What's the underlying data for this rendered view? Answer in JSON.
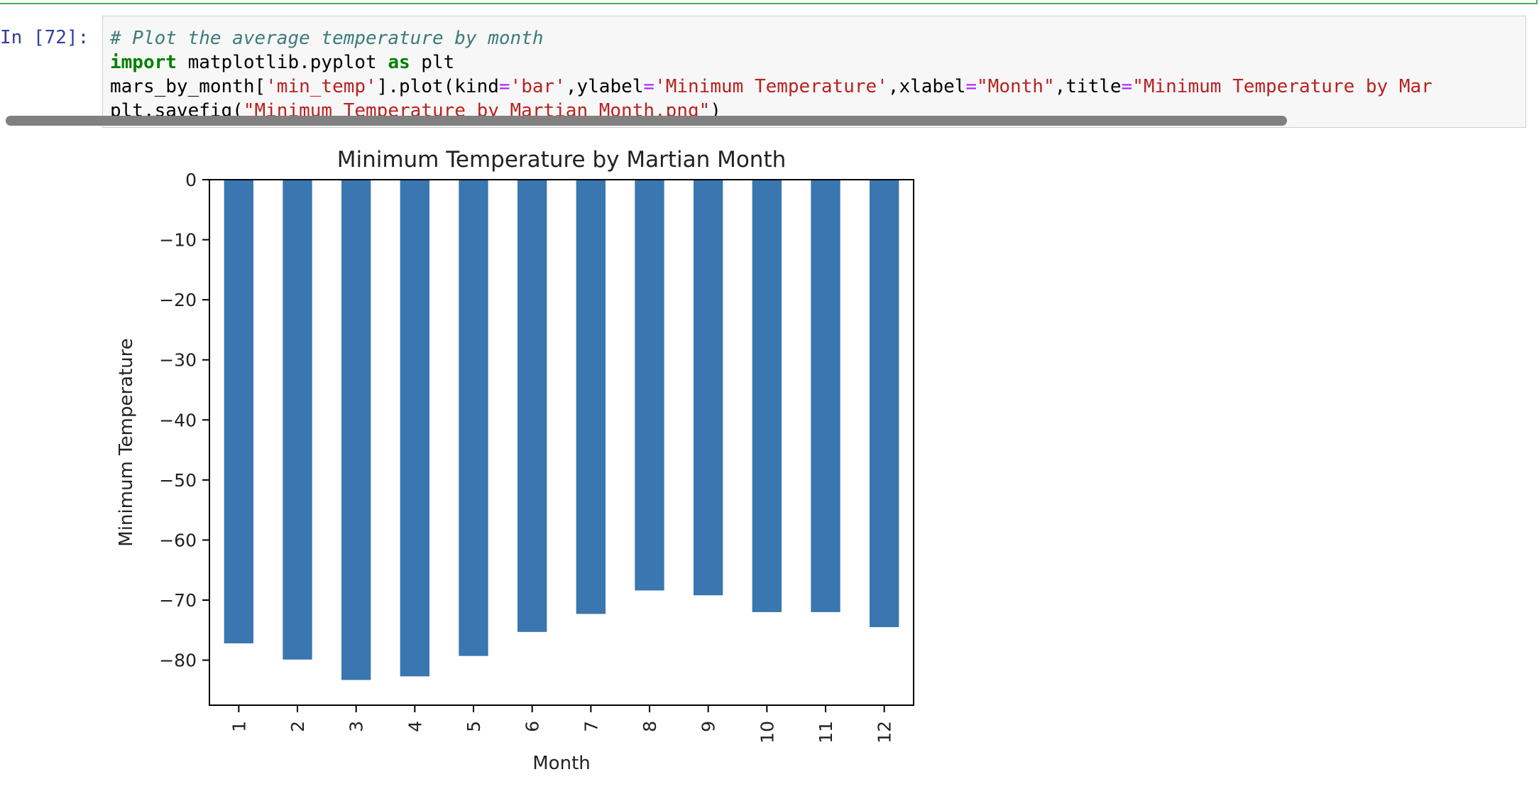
{
  "cell": {
    "prompt": "In [72]:",
    "code_lines": [
      [
        {
          "t": "# Plot the average temperature by month",
          "c": "c-comment"
        }
      ],
      [
        {
          "t": "import",
          "c": "c-kw"
        },
        {
          "t": " matplotlib.pyplot ",
          "c": ""
        },
        {
          "t": "as",
          "c": "c-kw"
        },
        {
          "t": " plt",
          "c": ""
        }
      ],
      [
        {
          "t": "mars_by_month[",
          "c": ""
        },
        {
          "t": "'min_temp'",
          "c": "c-str"
        },
        {
          "t": "].plot(kind",
          "c": ""
        },
        {
          "t": "=",
          "c": "c-op"
        },
        {
          "t": "'bar'",
          "c": "c-str"
        },
        {
          "t": ",ylabel",
          "c": ""
        },
        {
          "t": "=",
          "c": "c-op"
        },
        {
          "t": "'Minimum Temperature'",
          "c": "c-str"
        },
        {
          "t": ",xlabel",
          "c": ""
        },
        {
          "t": "=",
          "c": "c-op"
        },
        {
          "t": "\"Month\"",
          "c": "c-str"
        },
        {
          "t": ",title",
          "c": ""
        },
        {
          "t": "=",
          "c": "c-op"
        },
        {
          "t": "\"Minimum Temperature by Mar",
          "c": "c-str"
        }
      ],
      [
        {
          "t": "plt.savefig(",
          "c": ""
        },
        {
          "t": "\"Minimum_Temperature_by_Martian_Month.png\"",
          "c": "c-str"
        },
        {
          "t": ")",
          "c": ""
        }
      ]
    ]
  },
  "chart_data": {
    "type": "bar",
    "title": "Minimum Temperature by Martian Month",
    "xlabel": "Month",
    "ylabel": "Minimum Temperature",
    "categories": [
      "1",
      "2",
      "3",
      "4",
      "5",
      "6",
      "7",
      "8",
      "9",
      "10",
      "11",
      "12"
    ],
    "values": [
      -77.2,
      -79.9,
      -83.3,
      -82.7,
      -79.3,
      -75.3,
      -72.3,
      -68.4,
      -69.2,
      -72.0,
      -72.0,
      -74.5
    ],
    "ylim": [
      -87.5,
      0
    ],
    "yticks": [
      0,
      -10,
      -20,
      -30,
      -40,
      -50,
      -60,
      -70,
      -80
    ],
    "ytick_labels": [
      "0",
      "−10",
      "−20",
      "−30",
      "−40",
      "−50",
      "−60",
      "−70",
      "−80"
    ],
    "bar_color": "#3a76af",
    "grid": false,
    "legend": "none"
  }
}
